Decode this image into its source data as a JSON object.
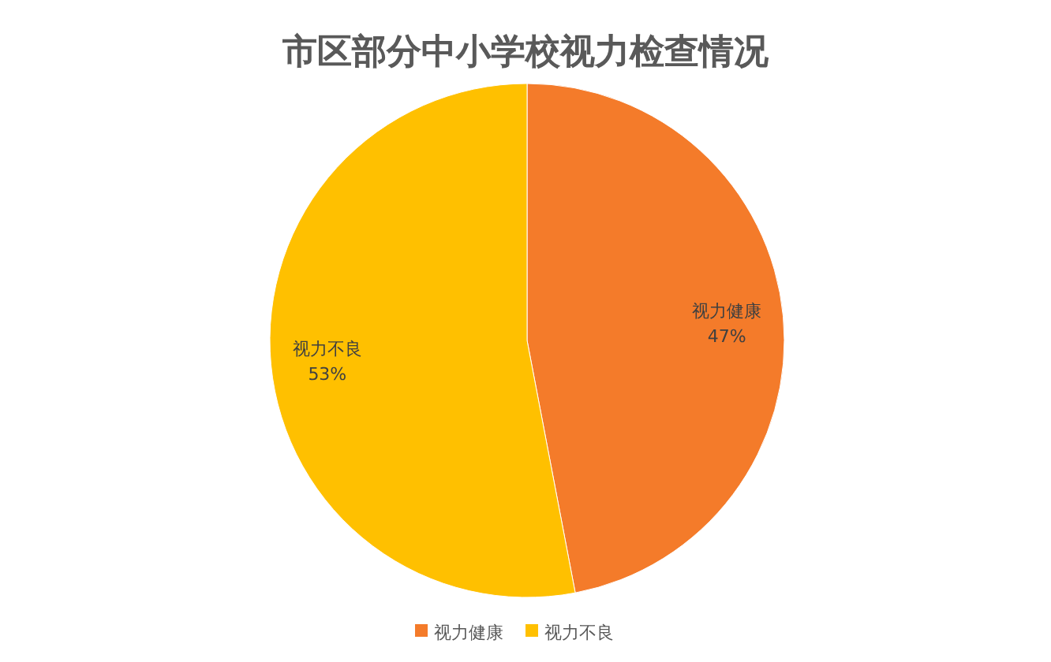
{
  "chart_data": {
    "type": "pie",
    "title": "市区部分中小学校视力检查情况",
    "categories": [
      "视力健康",
      "视力不良"
    ],
    "values": [
      47,
      53
    ],
    "colors": [
      "#f47b2a",
      "#ffc000"
    ],
    "value_labels": [
      "47%",
      "53%"
    ],
    "legend": "bottom"
  }
}
